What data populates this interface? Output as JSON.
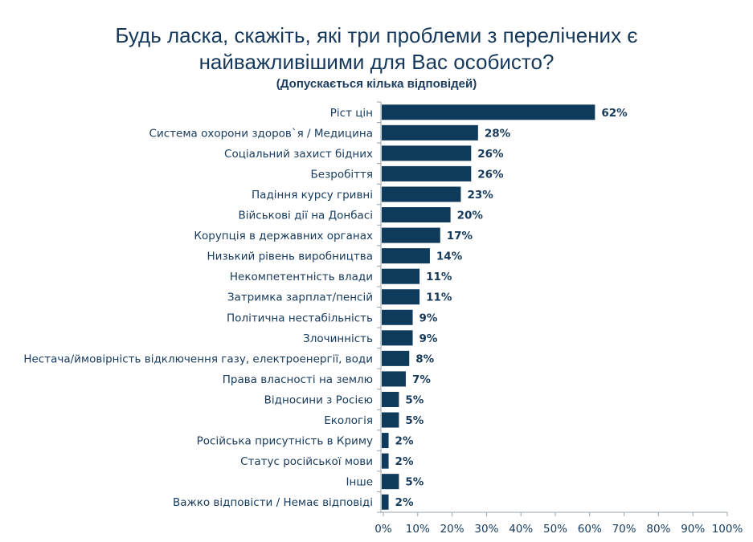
{
  "chart_data": {
    "type": "bar",
    "orientation": "horizontal",
    "title_lines": [
      "Будь ласка, скажіть, які три проблеми з перелічених є",
      "найважливішими для Вас особисто?"
    ],
    "subtitle": "(Допускається кілька відповідей)",
    "categories": [
      "Ріст цін",
      "Система охорони здоров`я / Медицина",
      "Соціальний захист бідних",
      "Безробіття",
      "Падіння курсу гривні",
      "Військові дії на Донбасі",
      "Корупція в державних органах",
      "Низький рівень виробництва",
      "Некомпетентність влади",
      "Затримка зарплат/пенсій",
      "Політична нестабільність",
      "Злочинність",
      "Нестача/ймовірність відключення газу, електроенергії, води",
      "Права власності на землю",
      "Відносини з Росією",
      "Екологія",
      "Російська присутність в Криму",
      "Статус російської мови",
      "Інше",
      "Важко відповісти / Немає відповіді"
    ],
    "values": [
      62,
      28,
      26,
      26,
      23,
      20,
      17,
      14,
      11,
      11,
      9,
      9,
      8,
      7,
      5,
      5,
      2,
      2,
      5,
      2
    ],
    "data_labels": [
      "62%",
      "28%",
      "26%",
      "26%",
      "23%",
      "20%",
      "17%",
      "14%",
      "11%",
      "11%",
      "9%",
      "9%",
      "8%",
      "7%",
      "5%",
      "5%",
      "2%",
      "2%",
      "5%",
      "2%"
    ],
    "xlim": [
      0,
      100
    ],
    "x_ticks": [
      "0%",
      "10%",
      "20%",
      "30%",
      "40%",
      "50%",
      "60%",
      "70%",
      "80%",
      "90%",
      "100%"
    ],
    "grid": false,
    "legend": "none",
    "bar_color": "#0e3a5c",
    "text_color": "#163a5c"
  }
}
